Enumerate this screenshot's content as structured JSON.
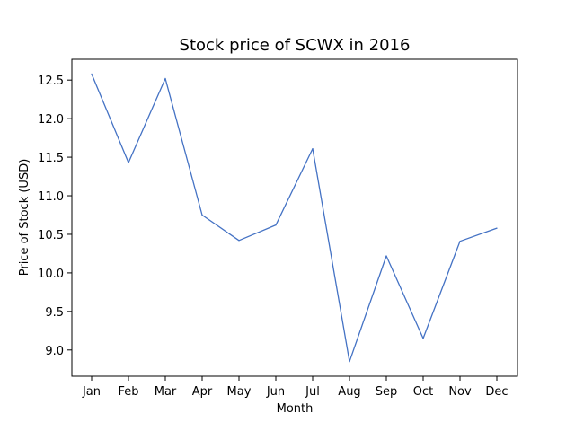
{
  "chart_data": {
    "type": "line",
    "title": "Stock price of SCWX in 2016",
    "xlabel": "Month",
    "ylabel": "Price of Stock (USD)",
    "categories": [
      "Jan",
      "Feb",
      "Mar",
      "Apr",
      "May",
      "Jun",
      "Jul",
      "Aug",
      "Sep",
      "Oct",
      "Nov",
      "Dec"
    ],
    "series": [
      {
        "values": [
          12.58,
          11.43,
          12.52,
          10.75,
          10.42,
          10.62,
          11.61,
          8.85,
          10.22,
          9.15,
          10.41,
          10.58
        ],
        "color": "#4472c4"
      }
    ],
    "yticks": [
      "9.0",
      "9.5",
      "10.0",
      "10.5",
      "11.0",
      "11.5",
      "12.0",
      "12.5"
    ],
    "ylim": [
      8.66,
      12.77
    ],
    "grid": false,
    "legend": "none"
  }
}
